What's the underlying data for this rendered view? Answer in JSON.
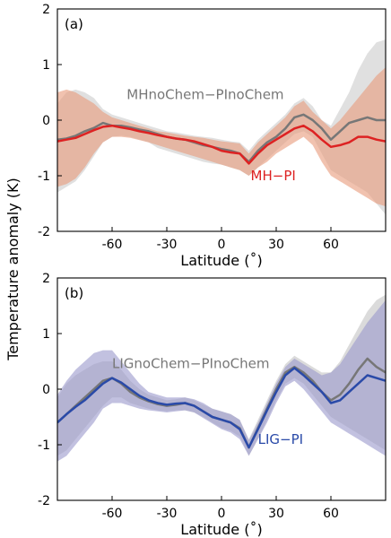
{
  "figure": {
    "ylabel": "Temperature anomaly (K)"
  },
  "chart_data": [
    {
      "type": "line",
      "panel_label": "(a)",
      "xlabel": "Latitude (˚)",
      "ylabel": "Temperature anomaly (K)",
      "xlim": [
        -90,
        90
      ],
      "ylim": [
        -2,
        2
      ],
      "xticks": [
        -60,
        -30,
        0,
        30,
        60
      ],
      "yticks": [
        -2,
        -1,
        0,
        1,
        2
      ],
      "x": [
        -90,
        -85,
        -80,
        -75,
        -70,
        -65,
        -60,
        -55,
        -50,
        -45,
        -40,
        -35,
        -30,
        -25,
        -20,
        -15,
        -10,
        -5,
        0,
        5,
        10,
        15,
        20,
        25,
        30,
        35,
        40,
        45,
        50,
        55,
        60,
        65,
        70,
        75,
        80,
        85,
        90
      ],
      "series": [
        {
          "name": "MHnoChem−PInoChem",
          "color": "#777777",
          "band_color": "#d5d5d5",
          "values": [
            -0.35,
            -0.33,
            -0.28,
            -0.2,
            -0.14,
            -0.05,
            -0.1,
            -0.1,
            -0.13,
            -0.17,
            -0.2,
            -0.25,
            -0.3,
            -0.33,
            -0.35,
            -0.4,
            -0.45,
            -0.48,
            -0.52,
            -0.55,
            -0.6,
            -0.75,
            -0.55,
            -0.4,
            -0.3,
            -0.15,
            0.05,
            0.1,
            0.0,
            -0.15,
            -0.35,
            -0.2,
            -0.05,
            0.0,
            0.05,
            0.0,
            0.0
          ],
          "upper": [
            0.3,
            0.5,
            0.55,
            0.5,
            0.4,
            0.2,
            0.1,
            0.05,
            0.0,
            -0.05,
            -0.1,
            -0.15,
            -0.2,
            -0.22,
            -0.25,
            -0.28,
            -0.3,
            -0.32,
            -0.35,
            -0.38,
            -0.4,
            -0.55,
            -0.35,
            -0.2,
            -0.05,
            0.1,
            0.3,
            0.4,
            0.25,
            0.0,
            -0.1,
            0.2,
            0.5,
            0.9,
            1.2,
            1.4,
            1.45
          ],
          "lower": [
            -1.3,
            -1.2,
            -1.1,
            -0.9,
            -0.65,
            -0.4,
            -0.3,
            -0.28,
            -0.3,
            -0.35,
            -0.4,
            -0.5,
            -0.55,
            -0.6,
            -0.65,
            -0.7,
            -0.75,
            -0.78,
            -0.8,
            -0.85,
            -0.9,
            -1.0,
            -0.85,
            -0.7,
            -0.55,
            -0.4,
            -0.25,
            -0.2,
            -0.3,
            -0.6,
            -0.9,
            -1.0,
            -1.1,
            -1.2,
            -1.3,
            -1.5,
            -1.7
          ]
        },
        {
          "name": "MH−PI",
          "color": "#dd2222",
          "band_color": "#e89a7a",
          "values": [
            -0.38,
            -0.35,
            -0.32,
            -0.25,
            -0.18,
            -0.12,
            -0.1,
            -0.13,
            -0.16,
            -0.2,
            -0.23,
            -0.27,
            -0.3,
            -0.33,
            -0.35,
            -0.38,
            -0.43,
            -0.48,
            -0.55,
            -0.58,
            -0.6,
            -0.78,
            -0.6,
            -0.45,
            -0.35,
            -0.25,
            -0.15,
            -0.1,
            -0.2,
            -0.35,
            -0.48,
            -0.45,
            -0.4,
            -0.3,
            -0.3,
            -0.35,
            -0.38
          ],
          "upper": [
            0.5,
            0.55,
            0.5,
            0.4,
            0.3,
            0.15,
            0.05,
            0.0,
            -0.05,
            -0.1,
            -0.15,
            -0.2,
            -0.22,
            -0.25,
            -0.28,
            -0.3,
            -0.32,
            -0.35,
            -0.38,
            -0.4,
            -0.42,
            -0.6,
            -0.4,
            -0.25,
            -0.1,
            0.05,
            0.25,
            0.35,
            0.15,
            0.0,
            -0.15,
            0.0,
            0.2,
            0.4,
            0.6,
            0.8,
            0.95
          ],
          "lower": [
            -1.2,
            -1.15,
            -1.05,
            -0.85,
            -0.6,
            -0.4,
            -0.3,
            -0.3,
            -0.32,
            -0.36,
            -0.4,
            -0.45,
            -0.5,
            -0.55,
            -0.6,
            -0.65,
            -0.7,
            -0.75,
            -0.8,
            -0.85,
            -0.9,
            -1.0,
            -0.85,
            -0.75,
            -0.6,
            -0.5,
            -0.4,
            -0.3,
            -0.45,
            -0.75,
            -1.0,
            -1.1,
            -1.2,
            -1.3,
            -1.4,
            -1.5,
            -1.55
          ]
        }
      ],
      "annotations": [
        {
          "text": "MHnoChem−PInoChem",
          "x": -52,
          "y": 0.38,
          "color": "#777777"
        },
        {
          "text": "MH−PI",
          "x": 16,
          "y": -1.08,
          "color": "#dd2222"
        }
      ]
    },
    {
      "type": "line",
      "panel_label": "(b)",
      "xlabel": "Latitude (˚)",
      "ylabel": "Temperature anomaly (K)",
      "xlim": [
        -90,
        90
      ],
      "ylim": [
        -2,
        2
      ],
      "xticks": [
        -60,
        -30,
        0,
        30,
        60
      ],
      "yticks": [
        -2,
        -1,
        0,
        1,
        2
      ],
      "x": [
        -90,
        -85,
        -80,
        -75,
        -70,
        -65,
        -60,
        -55,
        -50,
        -45,
        -40,
        -35,
        -30,
        -25,
        -20,
        -15,
        -10,
        -5,
        0,
        5,
        10,
        15,
        20,
        25,
        30,
        35,
        40,
        45,
        50,
        55,
        60,
        65,
        70,
        75,
        80,
        85,
        90
      ],
      "series": [
        {
          "name": "LIGnoChem−PInoChem",
          "color": "#777777",
          "band_color": "#cfcfcf",
          "values": [
            -0.6,
            -0.45,
            -0.3,
            -0.15,
            0.0,
            0.15,
            0.2,
            0.1,
            -0.05,
            -0.15,
            -0.22,
            -0.27,
            -0.3,
            -0.28,
            -0.25,
            -0.3,
            -0.4,
            -0.5,
            -0.55,
            -0.6,
            -0.7,
            -1.05,
            -0.7,
            -0.35,
            0.0,
            0.3,
            0.4,
            0.3,
            0.15,
            -0.05,
            -0.2,
            -0.1,
            0.1,
            0.35,
            0.55,
            0.4,
            0.3
          ],
          "upper": [
            -0.15,
            0.1,
            0.25,
            0.35,
            0.45,
            0.5,
            0.5,
            0.35,
            0.15,
            0.0,
            -0.1,
            -0.15,
            -0.2,
            -0.18,
            -0.15,
            -0.2,
            -0.28,
            -0.35,
            -0.4,
            -0.45,
            -0.55,
            -0.9,
            -0.55,
            -0.2,
            0.15,
            0.45,
            0.6,
            0.5,
            0.4,
            0.3,
            0.3,
            0.5,
            0.8,
            1.1,
            1.4,
            1.6,
            1.7
          ],
          "lower": [
            -1.2,
            -1.1,
            -0.9,
            -0.7,
            -0.5,
            -0.3,
            -0.15,
            -0.15,
            -0.25,
            -0.3,
            -0.35,
            -0.38,
            -0.4,
            -0.38,
            -0.38,
            -0.42,
            -0.5,
            -0.6,
            -0.7,
            -0.75,
            -0.85,
            -1.2,
            -0.9,
            -0.55,
            -0.2,
            0.1,
            0.2,
            0.1,
            -0.1,
            -0.3,
            -0.5,
            -0.6,
            -0.7,
            -0.8,
            -0.9,
            -1.0,
            -1.1
          ]
        },
        {
          "name": "LIG−PI",
          "color": "#2a4aa8",
          "band_color": "#9a98cc",
          "values": [
            -0.6,
            -0.45,
            -0.32,
            -0.2,
            -0.05,
            0.1,
            0.2,
            0.12,
            0.0,
            -0.12,
            -0.2,
            -0.25,
            -0.28,
            -0.26,
            -0.25,
            -0.3,
            -0.4,
            -0.5,
            -0.55,
            -0.6,
            -0.72,
            -1.05,
            -0.72,
            -0.38,
            -0.05,
            0.25,
            0.38,
            0.25,
            0.1,
            -0.05,
            -0.25,
            -0.2,
            -0.05,
            0.1,
            0.25,
            0.2,
            0.15
          ],
          "upper": [
            -0.1,
            0.15,
            0.35,
            0.5,
            0.65,
            0.7,
            0.7,
            0.5,
            0.3,
            0.1,
            -0.05,
            -0.1,
            -0.15,
            -0.15,
            -0.15,
            -0.18,
            -0.25,
            -0.35,
            -0.4,
            -0.45,
            -0.55,
            -0.92,
            -0.6,
            -0.25,
            0.1,
            0.4,
            0.55,
            0.45,
            0.35,
            0.25,
            0.3,
            0.45,
            0.7,
            0.95,
            1.2,
            1.4,
            1.6
          ],
          "lower": [
            -1.3,
            -1.2,
            -1.0,
            -0.8,
            -0.6,
            -0.35,
            -0.25,
            -0.25,
            -0.3,
            -0.35,
            -0.38,
            -0.4,
            -0.42,
            -0.4,
            -0.38,
            -0.42,
            -0.52,
            -0.62,
            -0.72,
            -0.78,
            -0.9,
            -1.2,
            -0.9,
            -0.6,
            -0.25,
            0.05,
            0.15,
            0.0,
            -0.2,
            -0.4,
            -0.6,
            -0.7,
            -0.8,
            -0.9,
            -1.0,
            -1.1,
            -1.2
          ]
        }
      ],
      "annotations": [
        {
          "text": "LIGnoChem−PInoChem",
          "x": -60,
          "y": 0.38,
          "color": "#777777"
        },
        {
          "text": "LIG−PI",
          "x": 20,
          "y": -0.98,
          "color": "#2a4aa8"
        }
      ]
    }
  ]
}
